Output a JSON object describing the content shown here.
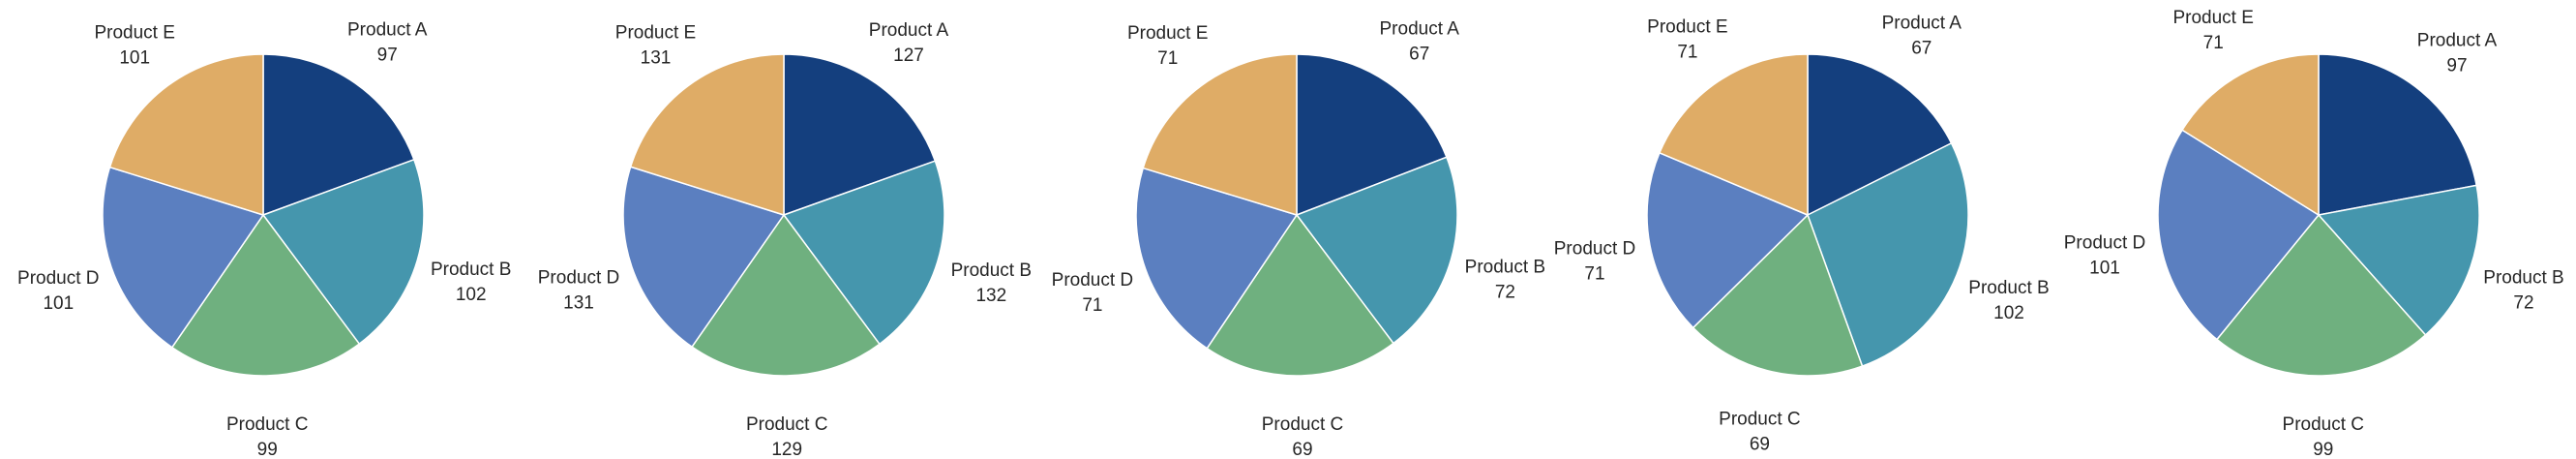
{
  "chart_data": [
    {
      "type": "pie",
      "categories": [
        "Product A",
        "Product B",
        "Product C",
        "Product D",
        "Product E"
      ],
      "values": [
        97,
        102,
        99,
        101,
        101
      ],
      "colors": [
        "#143f7e",
        "#4596ad",
        "#6fb07f",
        "#5b7fc0",
        "#dfac66"
      ]
    },
    {
      "type": "pie",
      "categories": [
        "Product A",
        "Product B",
        "Product C",
        "Product D",
        "Product E"
      ],
      "values": [
        127,
        132,
        129,
        131,
        131
      ],
      "colors": [
        "#143f7e",
        "#4596ad",
        "#6fb07f",
        "#5b7fc0",
        "#dfac66"
      ]
    },
    {
      "type": "pie",
      "categories": [
        "Product A",
        "Product B",
        "Product C",
        "Product D",
        "Product E"
      ],
      "values": [
        67,
        72,
        69,
        71,
        71
      ],
      "colors": [
        "#143f7e",
        "#4596ad",
        "#6fb07f",
        "#5b7fc0",
        "#dfac66"
      ]
    },
    {
      "type": "pie",
      "categories": [
        "Product A",
        "Product B",
        "Product C",
        "Product D",
        "Product E"
      ],
      "values": [
        67,
        102,
        69,
        71,
        71
      ],
      "colors": [
        "#143f7e",
        "#4596ad",
        "#6fb07f",
        "#5b7fc0",
        "#dfac66"
      ]
    },
    {
      "type": "pie",
      "categories": [
        "Product A",
        "Product B",
        "Product C",
        "Product D",
        "Product E"
      ],
      "values": [
        97,
        72,
        99,
        101,
        71
      ],
      "colors": [
        "#143f7e",
        "#4596ad",
        "#6fb07f",
        "#5b7fc0",
        "#dfac66"
      ]
    }
  ]
}
